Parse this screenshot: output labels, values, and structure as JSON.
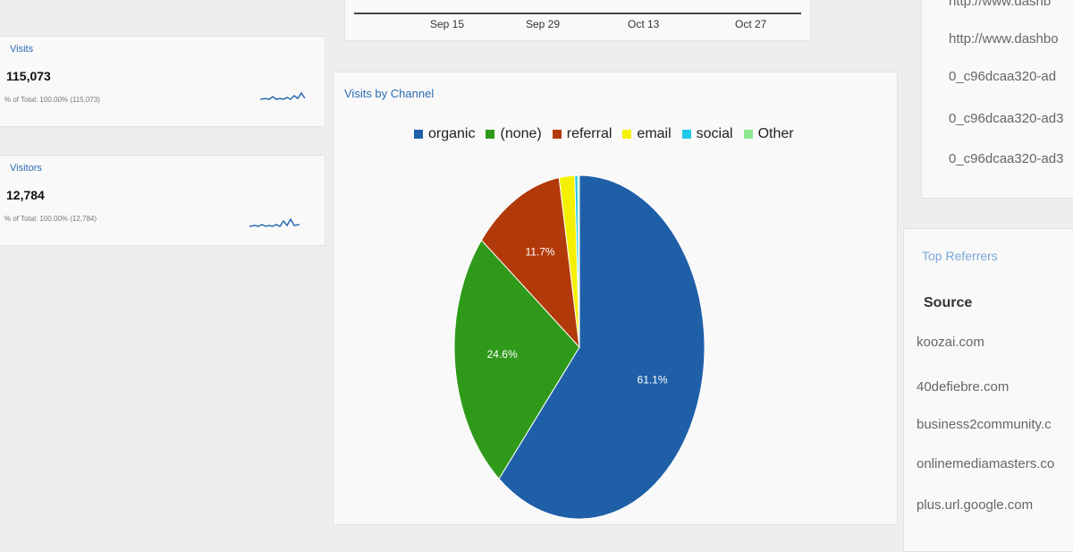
{
  "metrics": [
    {
      "title": "Visits",
      "value": "115,073",
      "sub": "% of Total: 100.00% (115,073)"
    },
    {
      "title": "Visitors",
      "value": "12,784",
      "sub": "% of Total: 100.00% (12,784)"
    }
  ],
  "timeline": {
    "ticks": [
      "Sep 15",
      "Sep 29",
      "Oct 13",
      "Oct 27"
    ]
  },
  "chart_card": {
    "title": "Visits by Channel"
  },
  "chart_data": {
    "type": "pie",
    "title": "",
    "labels": [
      "organic",
      "(none)",
      "referral",
      "email",
      "social",
      "Other"
    ],
    "values": [
      61.1,
      24.6,
      11.7,
      2.0,
      0.4,
      0.2
    ],
    "value_labels": [
      "61.1%",
      "24.6%",
      "11.7%",
      "",
      "",
      ""
    ],
    "colors": [
      "#1f5fa8",
      "#2f9a1a",
      "#b23a0a",
      "#f5f000",
      "#22c8e8",
      "#8ee68e"
    ],
    "legend": "top"
  },
  "url_list": [
    "http://www.dashb",
    "http://www.dashbo",
    "0_c96dcaa320-ad",
    "0_c96dcaa320-ad3",
    "0_c96dcaa320-ad3"
  ],
  "top_referrers": {
    "title": "Top Referrers",
    "column": "Source",
    "rows": [
      "koozai.com",
      "40defiebre.com",
      "business2community.c",
      "onlinemediamasters.co",
      "plus.url.google.com"
    ]
  }
}
